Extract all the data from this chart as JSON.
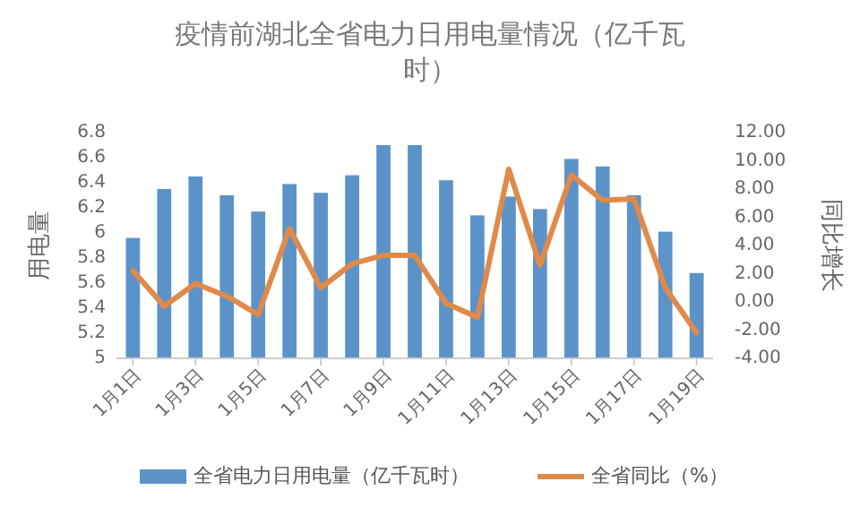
{
  "chart_data": {
    "type": "bar",
    "title": "疫情前湖北全省电力日用电量情况（亿千瓦时）",
    "ylabel": "用电量",
    "y2label": "同比增长",
    "categories": [
      "1月1日",
      null,
      "1月3日",
      null,
      "1月5日",
      null,
      "1月7日",
      null,
      "1月9日",
      null,
      "1月11日",
      null,
      "1月13日",
      null,
      "1月15日",
      null,
      "1月17日",
      null,
      "1月19日"
    ],
    "series": [
      {
        "name": "全省电力日用电量（亿千瓦时）",
        "color": "#5b93c9",
        "values": [
          5.96,
          6.35,
          6.45,
          6.3,
          6.17,
          6.39,
          6.32,
          6.46,
          6.7,
          6.7,
          6.42,
          6.14,
          6.29,
          6.19,
          6.59,
          6.53,
          6.3,
          6.01,
          5.68
        ]
      },
      {
        "name": "全省同比（%）",
        "type": "line",
        "axis": "y2",
        "color": "#e08a4a",
        "values": [
          2.2,
          -0.3,
          1.3,
          0.4,
          -0.9,
          5.2,
          1.0,
          2.7,
          3.3,
          3.3,
          -0.1,
          -1.1,
          9.4,
          2.6,
          9.0,
          7.2,
          7.3,
          1.0,
          -2.2
        ]
      }
    ],
    "ylim": [
      5,
      6.8
    ],
    "yticks": [
      5,
      5.2,
      5.4,
      5.6,
      5.8,
      6,
      6.2,
      6.4,
      6.6,
      6.8
    ],
    "y2lim": [
      -4,
      12
    ],
    "y2ticks": [
      {
        "value": -4,
        "label": "-4.00"
      },
      {
        "value": -2,
        "label": "-2.00"
      },
      {
        "value": 0,
        "label": "0.00"
      },
      {
        "value": 2,
        "label": "2.00"
      },
      {
        "value": 4,
        "label": "4.00"
      },
      {
        "value": 6,
        "label": "6.00"
      },
      {
        "value": 8,
        "label": "8.00"
      },
      {
        "value": 10,
        "label": "10.00"
      },
      {
        "value": 12,
        "label": "12.00"
      }
    ],
    "grid": false,
    "legend": "bottom",
    "marker": "none",
    "line_style": "solid"
  }
}
